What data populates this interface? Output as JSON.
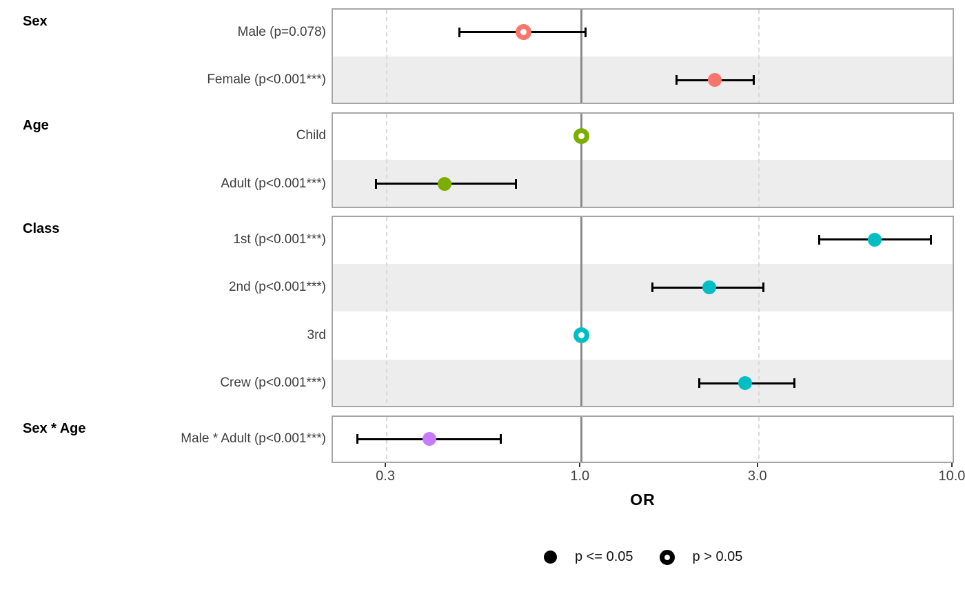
{
  "chart_data": {
    "type": "forest",
    "xlabel": "OR",
    "x_axis": {
      "scale": "log",
      "domain": [
        0.215,
        10.13
      ],
      "ticks": [
        0.3,
        1.0,
        3.0,
        10.0
      ],
      "tick_labels": [
        "0.3",
        "1.0",
        "3.0",
        "10.0"
      ],
      "reference_line": 1.0,
      "grid_dashed_at": [
        0.3,
        3.0,
        10.0
      ]
    },
    "groups": [
      {
        "label": "Sex",
        "color": "#F8766D",
        "rows": [
          {
            "label": "Male (p=0.078)",
            "or": 0.7,
            "ci_low": 0.47,
            "ci_high": 1.03,
            "significant": false,
            "reference": false
          },
          {
            "label": "Female (p<0.001***)",
            "or": 2.29,
            "ci_low": 1.8,
            "ci_high": 2.91,
            "significant": true,
            "reference": false
          }
        ]
      },
      {
        "label": "Age",
        "color": "#7CAE00",
        "rows": [
          {
            "label": "Child",
            "or": 1.0,
            "significant": false,
            "reference": true
          },
          {
            "label": "Adult (p<0.001***)",
            "or": 0.43,
            "ci_low": 0.28,
            "ci_high": 0.67,
            "significant": true,
            "reference": false
          }
        ]
      },
      {
        "label": "Class",
        "color": "#00BFC4",
        "rows": [
          {
            "label": "1st (p<0.001***)",
            "or": 6.16,
            "ci_low": 4.36,
            "ci_high": 8.71,
            "significant": true,
            "reference": false
          },
          {
            "label": "2nd (p<0.001***)",
            "or": 2.21,
            "ci_low": 1.55,
            "ci_high": 3.1,
            "significant": true,
            "reference": false
          },
          {
            "label": "3rd",
            "or": 1.0,
            "significant": false,
            "reference": true
          },
          {
            "label": "Crew (p<0.001***)",
            "or": 2.76,
            "ci_low": 2.07,
            "ci_high": 3.75,
            "significant": true,
            "reference": false
          }
        ]
      },
      {
        "label": "Sex * Age",
        "color": "#C77CFF",
        "rows": [
          {
            "label": "Male * Adult (p<0.001***)",
            "or": 0.39,
            "ci_low": 0.25,
            "ci_high": 0.61,
            "significant": true,
            "reference": false
          }
        ]
      }
    ],
    "legend": [
      {
        "label": "p <= 0.05",
        "shape": "filled"
      },
      {
        "label": "p > 0.05",
        "shape": "open"
      }
    ],
    "colors": {
      "stripe": "#EDEDED",
      "panel_border": "#A6A6A6",
      "gridline": "#D9D9D9",
      "reference_line": "#8A8A8A",
      "axis_text": "#404040",
      "row_label_text": "#3E3E3E",
      "facet_label_text": "#000000",
      "errorbar": "#000000",
      "legend_symbol": "#000000"
    }
  }
}
